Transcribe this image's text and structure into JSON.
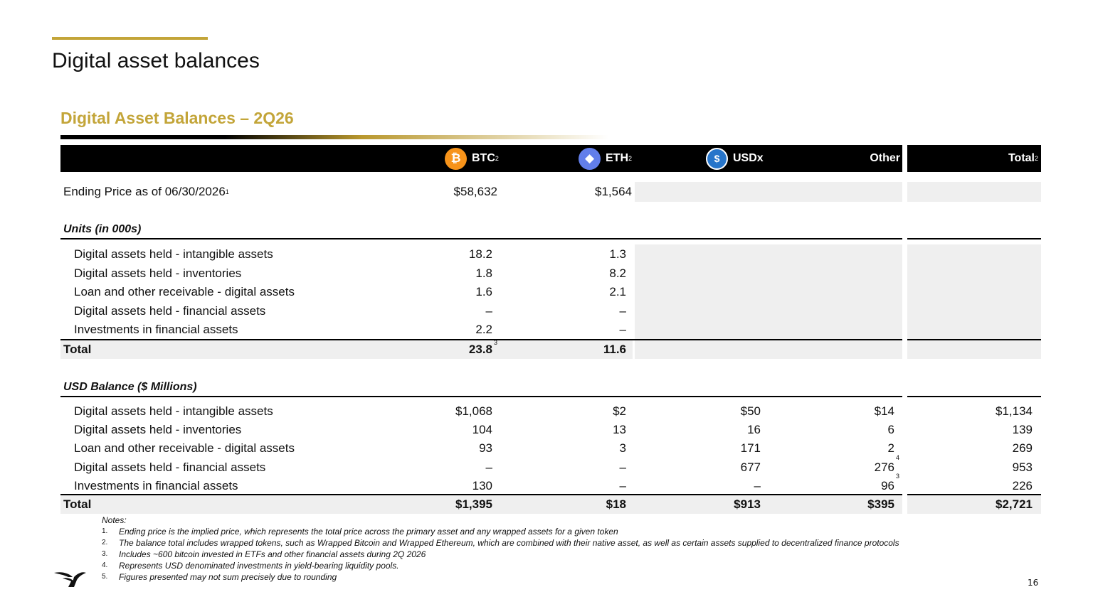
{
  "page": {
    "title": "Digital asset balances",
    "section_title": "Digital Asset Balances – 2Q26",
    "page_number": "16"
  },
  "colors": {
    "gold": "#c3a539",
    "header_bg": "#000000",
    "btc": "#f7931a",
    "eth": "#627eea",
    "usd": "#2775ca",
    "shade": "#efefef"
  },
  "header": {
    "btc": {
      "label": "BTC",
      "sup": "2",
      "icon": "bitcoin-icon",
      "glyph": "₿"
    },
    "eth": {
      "label": "ETH",
      "sup": "2",
      "icon": "ethereum-icon",
      "glyph": "◆"
    },
    "usdx": {
      "label": "USDx",
      "icon": "usd-coin-icon",
      "glyph": "$"
    },
    "other": {
      "label": "Other"
    },
    "total": {
      "label": "Total",
      "sup": "2"
    }
  },
  "ending_price": {
    "label": "Ending Price as of 06/30/2026",
    "sup": "1",
    "btc": "$58,632",
    "eth": "$1,564"
  },
  "units": {
    "heading": "Units (in 000s)",
    "rows": [
      {
        "label": "Digital assets held - intangible assets",
        "btc": "18.2",
        "eth": "1.3"
      },
      {
        "label": "Digital assets held - inventories",
        "btc": "1.8",
        "eth": "8.2"
      },
      {
        "label": "Loan and other receivable - digital assets",
        "btc": "1.6",
        "eth": "2.1"
      },
      {
        "label": "Digital assets held - financial assets",
        "btc": "–",
        "eth": "–"
      },
      {
        "label": "Investments in financial assets",
        "btc": "2.2",
        "eth": "–"
      }
    ],
    "total": {
      "label": "Total",
      "btc": "23.8",
      "btc_sup": "3",
      "eth": "11.6"
    }
  },
  "usd": {
    "heading": "USD Balance ($ Millions)",
    "rows": [
      {
        "label": "Digital assets held - intangible assets",
        "btc": "$1,068",
        "eth": "$2",
        "usdx": "$50",
        "other": "$14",
        "other_sup": "",
        "total": "$1,134"
      },
      {
        "label": "Digital assets held - inventories",
        "btc": "104",
        "eth": "13",
        "usdx": "16",
        "other": "6",
        "other_sup": "",
        "total": "139"
      },
      {
        "label": "Loan and other receivable - digital assets",
        "btc": "93",
        "eth": "3",
        "usdx": "171",
        "other": "2",
        "other_sup": "",
        "total": "269"
      },
      {
        "label": "Digital assets held - financial assets",
        "btc": "–",
        "eth": "–",
        "usdx": "677",
        "other": "276",
        "other_sup": "4",
        "total": "953"
      },
      {
        "label": "Investments in financial assets",
        "btc": "130",
        "eth": "–",
        "usdx": "–",
        "other": "96",
        "other_sup": "3",
        "total": "226"
      }
    ],
    "total": {
      "label": "Total",
      "btc": "$1,395",
      "eth": "$18",
      "usdx": "$913",
      "other": "$395",
      "total": "$2,721"
    }
  },
  "notes": {
    "heading": "Notes:",
    "items": [
      {
        "n": "1.",
        "text": "Ending price is the implied price, which represents the total price across the primary asset and any wrapped assets for a given token"
      },
      {
        "n": "2.",
        "text": "The balance total includes wrapped tokens, such as Wrapped Bitcoin and Wrapped Ethereum, which are combined with their native asset, as well as certain assets supplied to decentralized finance protocols"
      },
      {
        "n": "3.",
        "text": "Includes ~600 bitcoin invested in ETFs and other financial assets during 2Q 2026"
      },
      {
        "n": "4.",
        "text": "Represents USD denominated investments in yield-bearing liquidity pools."
      },
      {
        "n": "5.",
        "text": "Figures presented may not sum precisely due to rounding"
      }
    ]
  }
}
